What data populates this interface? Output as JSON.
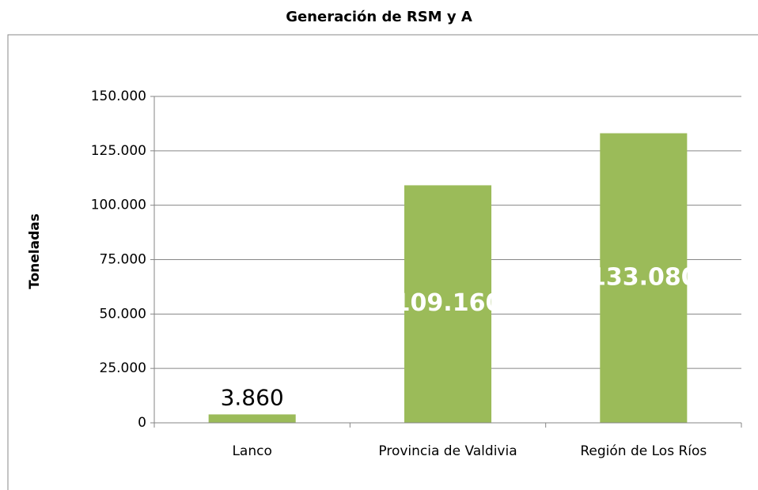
{
  "chart_data": {
    "type": "bar",
    "title": "Generación de RSM y A",
    "y_label": "Toneladas",
    "categories": [
      "Lanco",
      "Provincia de Valdivia",
      "Región de Los Ríos"
    ],
    "values": [
      3860,
      109160,
      133080
    ],
    "value_labels": [
      "3.860",
      "109.160",
      "133.080"
    ],
    "color": "#9bbb59",
    "ylim": [
      0,
      150000
    ],
    "yticks": [
      0,
      {
        "value": 25000,
        "label": "25.000"
      },
      {
        "value": 50000,
        "label": "50.000"
      },
      {
        "value": 75000,
        "label": "75.000"
      },
      {
        "value": 100000,
        "label": "100.000"
      },
      {
        "value": 125000,
        "label": "125.000"
      },
      {
        "value": 150000,
        "label": "150.000"
      }
    ],
    "grid": true
  }
}
